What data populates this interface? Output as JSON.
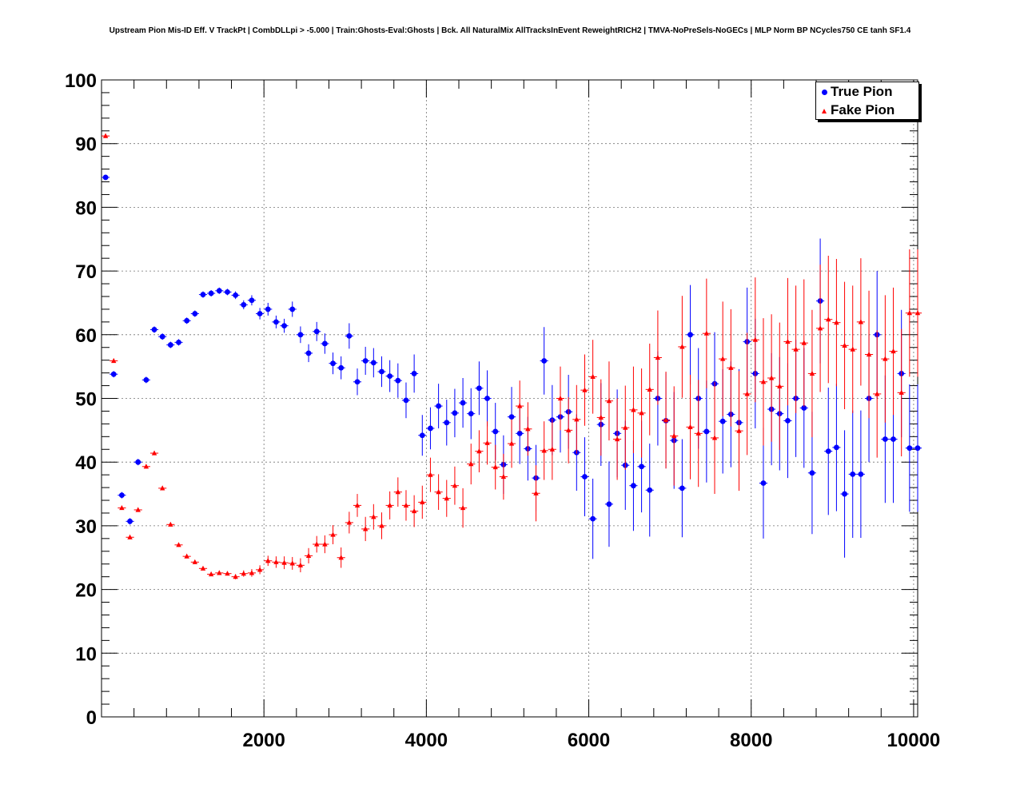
{
  "chart_data": {
    "type": "scatter",
    "title": "Upstream Pion Mis-ID Eff. V TrackPt | CombDLLpi > -5.000 | Train:Ghosts-Eval:Ghosts | Bck. All NaturalMix AllTracksInEvent ReweightRICH2 | TMVA-NoPreSels-NoGECs | MLP Norm BP NCycles750 CE tanh SF1.4",
    "xlabel": "",
    "ylabel": "",
    "xlim": [
      0,
      10050
    ],
    "ylim": [
      0,
      100
    ],
    "x_ticks": [
      2000,
      4000,
      6000,
      8000,
      10000
    ],
    "y_ticks": [
      0,
      10,
      20,
      30,
      40,
      50,
      60,
      70,
      80,
      90,
      100
    ],
    "grid": true,
    "legend_position": "top-right",
    "series": [
      {
        "name": "True Pion",
        "color": "#0000ff",
        "marker": "circle",
        "x": [
          50,
          150,
          250,
          350,
          450,
          550,
          650,
          750,
          850,
          950,
          1050,
          1150,
          1250,
          1350,
          1450,
          1550,
          1650,
          1750,
          1850,
          1950,
          2050,
          2150,
          2250,
          2350,
          2450,
          2550,
          2650,
          2750,
          2850,
          2950,
          3050,
          3150,
          3250,
          3350,
          3450,
          3550,
          3650,
          3750,
          3850,
          3950,
          4050,
          4150,
          4250,
          4350,
          4450,
          4550,
          4650,
          4750,
          4850,
          4950,
          5050,
          5150,
          5250,
          5350,
          5450,
          5550,
          5650,
          5750,
          5850,
          5950,
          6050,
          6150,
          6250,
          6350,
          6450,
          6550,
          6650,
          6750,
          6850,
          6950,
          7050,
          7150,
          7250,
          7350,
          7450,
          7550,
          7650,
          7750,
          7850,
          7950,
          8050,
          8150,
          8250,
          8350,
          8450,
          8550,
          8650,
          8750,
          8850,
          8950,
          9050,
          9150,
          9250,
          9350,
          9450,
          9550,
          9650,
          9750,
          9850,
          9950,
          10050
        ],
        "y": [
          84.7,
          53.8,
          34.8,
          30.7,
          40.0,
          52.9,
          60.8,
          59.7,
          58.4,
          58.8,
          62.2,
          63.3,
          66.3,
          66.5,
          66.9,
          66.7,
          66.2,
          64.7,
          65.4,
          63.3,
          64.0,
          62.0,
          61.4,
          64.0,
          60.0,
          57.1,
          60.5,
          58.6,
          55.5,
          54.8,
          59.8,
          52.6,
          55.9,
          55.6,
          54.2,
          53.5,
          52.8,
          49.7,
          53.9,
          44.2,
          45.3,
          48.8,
          46.2,
          47.7,
          49.3,
          47.6,
          51.6,
          50.0,
          44.8,
          39.6,
          47.1,
          44.5,
          42.1,
          37.5,
          55.9,
          46.6,
          47.1,
          47.9,
          41.5,
          37.7,
          31.1,
          45.9,
          33.4,
          44.5,
          39.5,
          36.3,
          39.3,
          35.6,
          50.0,
          46.5,
          43.4,
          35.9,
          60.0,
          50.0,
          44.8,
          52.3,
          46.4,
          47.5,
          46.2,
          58.9,
          53.9,
          36.7,
          48.3,
          47.6,
          46.5,
          50.0,
          48.5,
          38.3,
          65.3,
          41.7,
          42.3,
          35.0,
          38.1,
          38.1,
          50.0,
          60.0,
          43.6,
          43.6,
          53.9,
          42.2,
          42.2
        ],
        "y_err": [
          0.4,
          0.5,
          0.5,
          0.5,
          0.5,
          0.5,
          0.5,
          0.5,
          0.5,
          0.5,
          0.5,
          0.5,
          0.5,
          0.5,
          0.5,
          0.5,
          0.6,
          0.7,
          0.8,
          0.9,
          1.0,
          1.0,
          1.1,
          1.2,
          1.3,
          1.4,
          1.5,
          1.6,
          1.7,
          1.8,
          2.0,
          2.1,
          2.2,
          2.3,
          2.4,
          2.5,
          2.7,
          2.8,
          3.0,
          3.2,
          3.3,
          3.5,
          3.6,
          3.8,
          3.9,
          4.0,
          4.2,
          4.4,
          4.5,
          4.6,
          4.7,
          4.8,
          5.0,
          5.2,
          5.3,
          5.5,
          5.6,
          5.8,
          6.0,
          6.2,
          6.3,
          6.5,
          6.7,
          6.9,
          7.0,
          7.1,
          7.2,
          7.3,
          7.4,
          7.5,
          7.6,
          7.7,
          7.8,
          7.9,
          8.0,
          8.1,
          8.2,
          8.3,
          8.4,
          8.5,
          8.6,
          8.7,
          8.8,
          8.9,
          9.0,
          9.2,
          9.4,
          9.6,
          9.8,
          10.0,
          10.0,
          10.0,
          10.0,
          10.0,
          10.0,
          10.0,
          10.0,
          10.0,
          10.0,
          10.0,
          10.0
        ]
      },
      {
        "name": "Fake Pion",
        "color": "#ff0000",
        "marker": "triangle",
        "x": [
          50,
          150,
          250,
          350,
          450,
          550,
          650,
          750,
          850,
          950,
          1050,
          1150,
          1250,
          1350,
          1450,
          1550,
          1650,
          1750,
          1850,
          1950,
          2050,
          2150,
          2250,
          2350,
          2450,
          2550,
          2650,
          2750,
          2850,
          2950,
          3050,
          3150,
          3250,
          3350,
          3450,
          3550,
          3650,
          3750,
          3850,
          3950,
          4050,
          4150,
          4250,
          4350,
          4450,
          4550,
          4650,
          4750,
          4850,
          4950,
          5050,
          5150,
          5250,
          5350,
          5450,
          5550,
          5650,
          5750,
          5850,
          5950,
          6050,
          6150,
          6250,
          6350,
          6450,
          6550,
          6650,
          6750,
          6850,
          6950,
          7050,
          7150,
          7250,
          7350,
          7450,
          7550,
          7650,
          7750,
          7850,
          7950,
          8050,
          8150,
          8250,
          8350,
          8450,
          8550,
          8650,
          8750,
          8850,
          8950,
          9050,
          9150,
          9250,
          9350,
          9450,
          9550,
          9650,
          9750,
          9850,
          9950,
          10050
        ],
        "y": [
          91.2,
          55.9,
          32.8,
          28.2,
          32.5,
          39.3,
          41.4,
          35.9,
          30.2,
          27.0,
          25.2,
          24.3,
          23.3,
          22.4,
          22.6,
          22.5,
          22.0,
          22.5,
          22.6,
          23.1,
          24.5,
          24.3,
          24.2,
          24.1,
          23.8,
          25.3,
          27.1,
          27.1,
          28.6,
          25.0,
          30.5,
          33.2,
          29.5,
          31.4,
          30.0,
          33.2,
          35.3,
          33.2,
          32.3,
          33.7,
          38.0,
          35.3,
          34.3,
          36.3,
          32.8,
          39.7,
          41.7,
          43.0,
          39.2,
          37.7,
          42.9,
          48.8,
          45.2,
          35.1,
          41.8,
          42.0,
          50.0,
          45.0,
          46.7,
          51.3,
          53.4,
          47.0,
          49.6,
          43.6,
          45.4,
          48.2,
          47.7,
          51.4,
          56.4,
          46.6,
          44.1,
          58.1,
          45.5,
          44.5,
          60.2,
          43.8,
          56.2,
          54.8,
          44.9,
          50.7,
          59.2,
          52.6,
          53.2,
          51.9,
          58.9,
          57.7,
          58.7,
          53.9,
          61.0,
          62.4,
          61.9,
          58.3,
          57.7,
          62.0,
          56.9,
          50.7,
          56.2,
          57.4,
          50.9,
          63.4,
          63.4
        ],
        "y_err": [
          0.2,
          0.3,
          0.3,
          0.3,
          0.3,
          0.3,
          0.3,
          0.3,
          0.3,
          0.3,
          0.3,
          0.3,
          0.3,
          0.3,
          0.3,
          0.3,
          0.4,
          0.5,
          0.6,
          0.7,
          0.8,
          0.9,
          1.0,
          1.0,
          1.1,
          1.2,
          1.3,
          1.4,
          1.5,
          1.6,
          1.7,
          1.8,
          1.9,
          2.0,
          2.1,
          2.2,
          2.3,
          2.4,
          2.5,
          2.6,
          2.7,
          2.8,
          2.9,
          3.0,
          3.1,
          3.2,
          3.3,
          3.4,
          3.5,
          3.6,
          3.8,
          4.0,
          4.2,
          4.4,
          4.6,
          4.8,
          5.0,
          5.2,
          5.4,
          5.6,
          5.8,
          6.0,
          6.2,
          6.4,
          6.6,
          6.8,
          7.0,
          7.2,
          7.4,
          7.6,
          7.8,
          8.0,
          8.2,
          8.4,
          8.6,
          8.8,
          9.0,
          9.2,
          9.4,
          9.6,
          9.8,
          10.0,
          10.0,
          10.0,
          10.0,
          10.0,
          10.0,
          10.0,
          10.0,
          10.0,
          10.0,
          10.0,
          10.0,
          10.0,
          10.0,
          10.0,
          10.0,
          10.0,
          10.0,
          10.0,
          10.0
        ]
      }
    ]
  }
}
